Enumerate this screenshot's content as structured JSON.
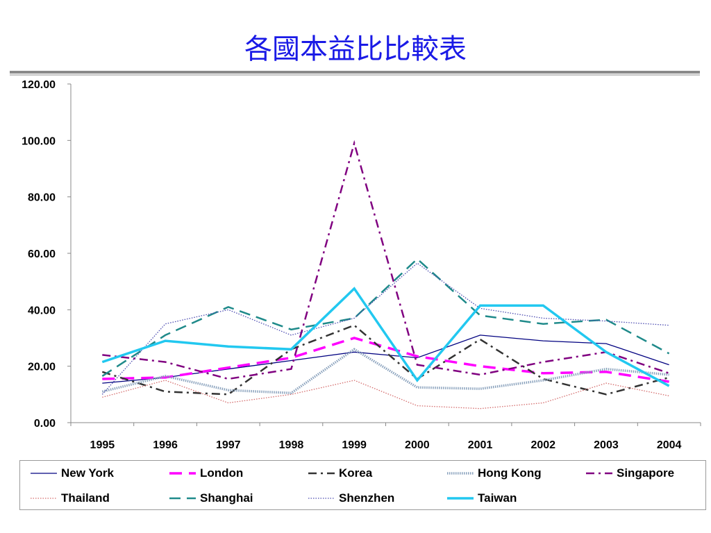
{
  "title": "各國本益比比較表",
  "chart_data": {
    "type": "line",
    "title": "各國本益比比較表",
    "xlabel": "",
    "ylabel": "",
    "categories": [
      "1995",
      "1996",
      "1997",
      "1998",
      "1999",
      "2000",
      "2001",
      "2002",
      "2003",
      "2004"
    ],
    "ylim": [
      0,
      120
    ],
    "yticks": [
      "0.00",
      "20.00",
      "40.00",
      "60.00",
      "80.00",
      "100.00",
      "120.00"
    ],
    "grid": false,
    "legend_position": "bottom",
    "series": [
      {
        "name": "New York",
        "color": "#000080",
        "style": "solid",
        "values": [
          14,
          16,
          19,
          22,
          25,
          23,
          31,
          29,
          28,
          20.5
        ]
      },
      {
        "name": "London",
        "color": "#ff00ff",
        "style": "long-dash",
        "values": [
          15.5,
          16,
          19.5,
          23,
          30,
          23.5,
          20,
          17.5,
          18,
          14.5
        ]
      },
      {
        "name": "Korea",
        "color": "#333333",
        "style": "dash-dot",
        "values": [
          18,
          11,
          10,
          26,
          34.5,
          15.5,
          29.5,
          15.5,
          10,
          16
        ]
      },
      {
        "name": "Hong Kong",
        "color": "#8aa2bd",
        "style": "dotted-thick",
        "values": [
          11,
          16.5,
          11.5,
          10.5,
          26,
          12.5,
          12,
          15,
          19,
          17
        ]
      },
      {
        "name": "Singapore",
        "color": "#800080",
        "style": "dash-dot",
        "values": [
          24,
          21.5,
          15.5,
          19,
          99,
          20.5,
          17,
          21.5,
          25,
          17.5
        ]
      },
      {
        "name": "Thailand",
        "color": "#d46a6a",
        "style": "dotted",
        "values": [
          9,
          15,
          7,
          10,
          15,
          6,
          5,
          7,
          14,
          9.5
        ]
      },
      {
        "name": "Shanghai",
        "color": "#1f8a8a",
        "style": "dash",
        "values": [
          16.5,
          31,
          41,
          33,
          37,
          58,
          38,
          35,
          36.5,
          24.5
        ]
      },
      {
        "name": "Shenzhen",
        "color": "#4a4ab0",
        "style": "dotted",
        "values": [
          10,
          35,
          40,
          31,
          37,
          56.5,
          40.5,
          37,
          36,
          34.5
        ]
      },
      {
        "name": "Taiwan",
        "color": "#22c8f0",
        "style": "solid-thick",
        "values": [
          21.5,
          29,
          27,
          26,
          47.5,
          15,
          41.5,
          41.5,
          25,
          13
        ]
      }
    ]
  }
}
